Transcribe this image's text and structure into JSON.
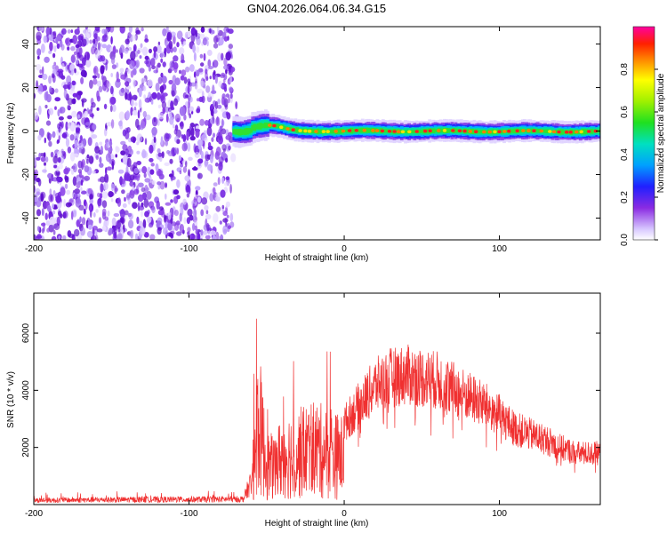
{
  "title": "GN04.2026.064.06.34.G15",
  "chart_data": [
    {
      "type": "heatmap",
      "title": "GN04.2026.064.06.34.G15",
      "xlabel": "Height of straight line (km)",
      "ylabel": "Frequency (Hz)",
      "xlim": [
        -200,
        165
      ],
      "ylim": [
        -50,
        48
      ],
      "x_ticks": [
        -200,
        -100,
        0,
        100
      ],
      "y_ticks": [
        -40,
        -20,
        0,
        20,
        40
      ],
      "description_regions": {
        "noise_x_range": [
          -200,
          -72
        ],
        "signal_band_x_range": [
          -72,
          165
        ],
        "signal_center_freq": 0
      },
      "colorbar": {
        "label": "Normalized spectral amplitude",
        "range": [
          0.0,
          1.0
        ],
        "ticks": [
          "0.0",
          "0.2",
          "0.4",
          "0.6",
          "0.8"
        ],
        "tick_values": [
          0.0,
          0.2,
          0.4,
          0.6,
          0.8
        ]
      }
    },
    {
      "type": "line",
      "xlabel": "Height of straight line (km)",
      "ylabel": "SNR (10 * v/v)",
      "xlim": [
        -200,
        165
      ],
      "ylim": [
        0,
        7400
      ],
      "x_ticks": [
        -200,
        -100,
        0,
        100
      ],
      "y_ticks": [
        2000,
        4000,
        6000
      ],
      "color": "#f03030",
      "envelope": {
        "x": [
          -200,
          -150,
          -100,
          -65,
          -60,
          -57,
          -55,
          -50,
          -45,
          -40,
          -30,
          -20,
          -10,
          0,
          10,
          20,
          30,
          40,
          50,
          60,
          70,
          80,
          90,
          100,
          110,
          120,
          130,
          140,
          150,
          165
        ],
        "y": [
          150,
          170,
          180,
          190,
          800,
          4000,
          5300,
          2500,
          2300,
          3100,
          3200,
          3600,
          3200,
          3000,
          3700,
          4400,
          4700,
          4800,
          4700,
          4600,
          4300,
          4000,
          3700,
          3300,
          2800,
          2600,
          2400,
          2100,
          1900,
          1900
        ]
      }
    }
  ]
}
